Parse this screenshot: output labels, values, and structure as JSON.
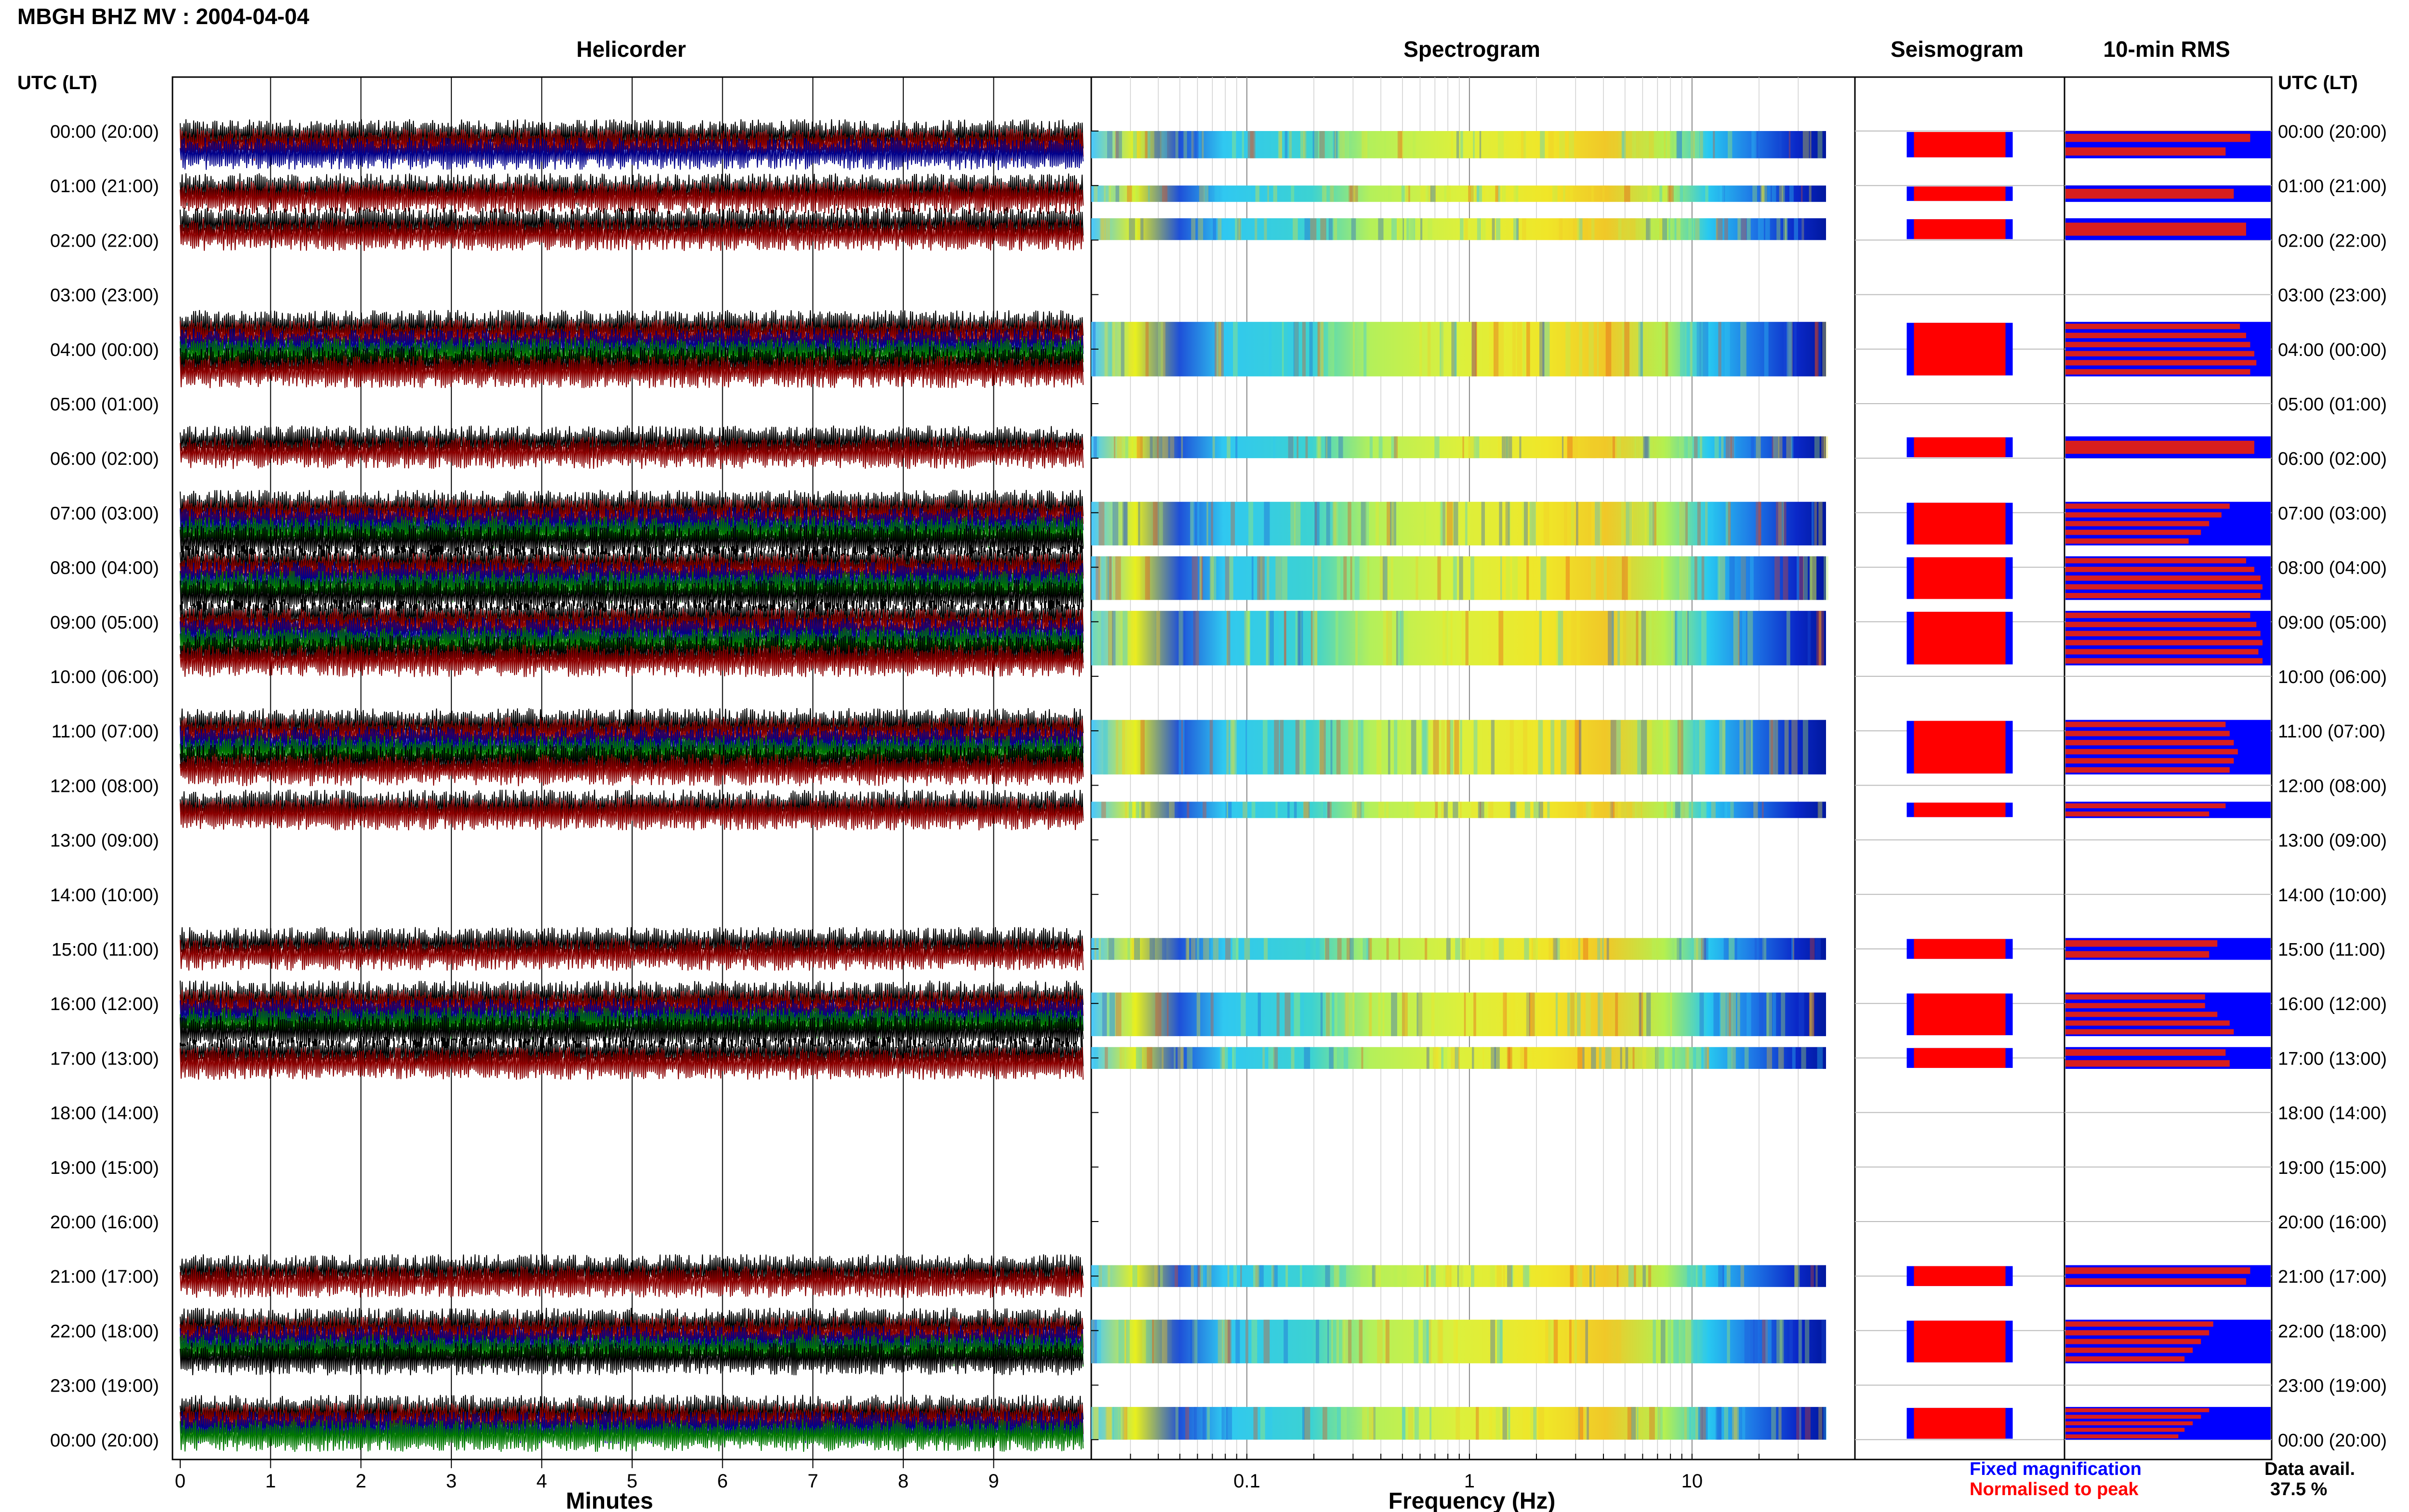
{
  "header": {
    "station": "MBGH BHZ MV : 2004-04-04"
  },
  "panels": {
    "helicorder": "Helicorder",
    "spectrogram": "Spectrogram",
    "seismogram": "Seismogram",
    "rms": "10-min RMS"
  },
  "axes": {
    "time_header_left": "UTC (LT)",
    "time_header_right": "UTC (LT)",
    "helicorder_xlabel": "Minutes",
    "spectrogram_xlabel": "Frequency (Hz)"
  },
  "legend": {
    "fixed": "Fixed magnification",
    "normalised": "Normalised to peak",
    "fixed_color": "#0000ff",
    "normalised_color": "#ff0000"
  },
  "availability": {
    "label": "Data avail.",
    "value": "37.5 %"
  },
  "colors": {
    "trace_colors": [
      "#000000",
      "#8b0000",
      "#00008b",
      "#007800"
    ],
    "rms_bar": "#d81e1e",
    "rms_fill": "#0000ff",
    "seis_fill": "#ff0000"
  },
  "chart_data": {
    "type": "heatmap",
    "title": "MBGH BHZ MV : 2004-04-04",
    "hour_labels": [
      "00:00 (20:00)",
      "01:00 (21:00)",
      "02:00 (22:00)",
      "03:00 (23:00)",
      "04:00 (00:00)",
      "05:00 (01:00)",
      "06:00 (02:00)",
      "07:00 (03:00)",
      "08:00 (04:00)",
      "09:00 (05:00)",
      "10:00 (06:00)",
      "11:00 (07:00)",
      "12:00 (08:00)",
      "13:00 (09:00)",
      "14:00 (10:00)",
      "15:00 (11:00)",
      "16:00 (12:00)",
      "17:00 (13:00)",
      "18:00 (14:00)",
      "19:00 (15:00)",
      "20:00 (16:00)",
      "21:00 (17:00)",
      "22:00 (18:00)",
      "23:00 (19:00)",
      "00:00 (20:00)"
    ],
    "minute_ticks": [
      0,
      1,
      2,
      3,
      4,
      5,
      6,
      7,
      8,
      9
    ],
    "minute_range": [
      0,
      10
    ],
    "frequency_ticks": [
      {
        "label": "0.1",
        "value": 0.1
      },
      {
        "label": "1",
        "value": 1
      },
      {
        "label": "10",
        "value": 10
      }
    ],
    "frequency_range": [
      0.02,
      40
    ],
    "data_segments": [
      {
        "start": 0.0,
        "end": 0.5,
        "rms": [
          0.9,
          0.78
        ],
        "spec": 0.55
      },
      {
        "start": 1.0,
        "end": 1.3,
        "rms": [
          0.82
        ],
        "spec": 0.6
      },
      {
        "start": 1.6,
        "end": 2.0,
        "rms": [
          0.88
        ],
        "spec": 0.6
      },
      {
        "start": 3.5,
        "end": 4.5,
        "rms": [
          0.85,
          0.88,
          0.9,
          0.92,
          0.93,
          0.9
        ],
        "spec": 0.65
      },
      {
        "start": 5.6,
        "end": 6.0,
        "rms": [
          0.92
        ],
        "spec": 0.6
      },
      {
        "start": 6.8,
        "end": 7.6,
        "rms": [
          0.8,
          0.76,
          0.7,
          0.66,
          0.6
        ],
        "spec": 0.62
      },
      {
        "start": 7.8,
        "end": 8.6,
        "rms": [
          0.88,
          0.92,
          0.95,
          0.96,
          0.95
        ],
        "spec": 0.7
      },
      {
        "start": 8.8,
        "end": 9.8,
        "rms": [
          0.9,
          0.93,
          0.95,
          0.96,
          0.94,
          0.96
        ],
        "spec": 0.72
      },
      {
        "start": 10.8,
        "end": 11.8,
        "rms": [
          0.78,
          0.8,
          0.82,
          0.84,
          0.82,
          0.8
        ],
        "spec": 0.68
      },
      {
        "start": 12.3,
        "end": 12.6,
        "rms": [
          0.78,
          0.7
        ],
        "spec": 0.6
      },
      {
        "start": 14.8,
        "end": 15.2,
        "rms": [
          0.74,
          0.7
        ],
        "spec": 0.55
      },
      {
        "start": 15.8,
        "end": 16.6,
        "rms": [
          0.68,
          0.68,
          0.74,
          0.8,
          0.82
        ],
        "spec": 0.55
      },
      {
        "start": 16.8,
        "end": 17.2,
        "rms": [
          0.78,
          0.8
        ],
        "spec": 0.55
      },
      {
        "start": 20.8,
        "end": 21.2,
        "rms": [
          0.9,
          0.88
        ],
        "spec": 0.55
      },
      {
        "start": 21.8,
        "end": 22.6,
        "rms": [
          0.72,
          0.7,
          0.66,
          0.62,
          0.58
        ],
        "spec": 0.58
      },
      {
        "start": 23.4,
        "end": 24.0,
        "rms": [
          0.7,
          0.66,
          0.62,
          0.58,
          0.55
        ],
        "spec": 0.6
      }
    ]
  }
}
